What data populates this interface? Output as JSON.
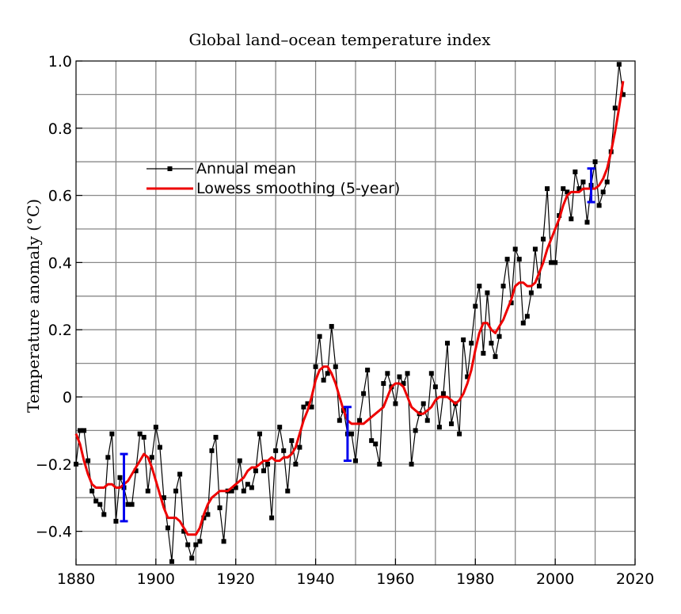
{
  "chart_data": {
    "type": "line",
    "title": "Global land–ocean temperature index",
    "xlabel": "",
    "ylabel": "Temperature anomaly (°C)",
    "xlim": [
      1880,
      2020
    ],
    "ylim": [
      -0.5,
      1.0
    ],
    "x_ticks": [
      1880,
      1900,
      1920,
      1940,
      1960,
      1980,
      2000,
      2020
    ],
    "y_ticks": [
      -0.4,
      -0.2,
      0,
      0.2,
      0.4,
      0.6,
      0.8,
      1.0
    ],
    "y_tick_labels": [
      "−0.4",
      "−0.2",
      "0",
      "0.2",
      "0.4",
      "0.6",
      "0.8",
      "1.0"
    ],
    "grid": true,
    "legend_position": "upper-left",
    "series": [
      {
        "name": "Annual mean",
        "color": "#000000",
        "marker": "square",
        "x": [
          1880,
          1881,
          1882,
          1883,
          1884,
          1885,
          1886,
          1887,
          1888,
          1889,
          1890,
          1891,
          1892,
          1893,
          1894,
          1895,
          1896,
          1897,
          1898,
          1899,
          1900,
          1901,
          1902,
          1903,
          1904,
          1905,
          1906,
          1907,
          1908,
          1909,
          1910,
          1911,
          1912,
          1913,
          1914,
          1915,
          1916,
          1917,
          1918,
          1919,
          1920,
          1921,
          1922,
          1923,
          1924,
          1925,
          1926,
          1927,
          1928,
          1929,
          1930,
          1931,
          1932,
          1933,
          1934,
          1935,
          1936,
          1937,
          1938,
          1939,
          1940,
          1941,
          1942,
          1943,
          1944,
          1945,
          1946,
          1947,
          1948,
          1949,
          1950,
          1951,
          1952,
          1953,
          1954,
          1955,
          1956,
          1957,
          1958,
          1959,
          1960,
          1961,
          1962,
          1963,
          1964,
          1965,
          1966,
          1967,
          1968,
          1969,
          1970,
          1971,
          1972,
          1973,
          1974,
          1975,
          1976,
          1977,
          1978,
          1979,
          1980,
          1981,
          1982,
          1983,
          1984,
          1985,
          1986,
          1987,
          1988,
          1989,
          1990,
          1991,
          1992,
          1993,
          1994,
          1995,
          1996,
          1997,
          1998,
          1999,
          2000,
          2001,
          2002,
          2003,
          2004,
          2005,
          2006,
          2007,
          2008,
          2009,
          2010,
          2011,
          2012,
          2013,
          2014,
          2015,
          2016,
          2017
        ],
        "y": [
          -0.2,
          -0.1,
          -0.1,
          -0.19,
          -0.28,
          -0.31,
          -0.32,
          -0.35,
          -0.18,
          -0.11,
          -0.37,
          -0.24,
          -0.27,
          -0.32,
          -0.32,
          -0.22,
          -0.11,
          -0.12,
          -0.28,
          -0.18,
          -0.09,
          -0.15,
          -0.3,
          -0.39,
          -0.49,
          -0.28,
          -0.23,
          -0.4,
          -0.44,
          -0.48,
          -0.44,
          -0.43,
          -0.36,
          -0.35,
          -0.16,
          -0.12,
          -0.33,
          -0.43,
          -0.28,
          -0.28,
          -0.27,
          -0.19,
          -0.28,
          -0.26,
          -0.27,
          -0.22,
          -0.11,
          -0.22,
          -0.2,
          -0.36,
          -0.16,
          -0.09,
          -0.16,
          -0.28,
          -0.13,
          -0.2,
          -0.15,
          -0.03,
          -0.02,
          -0.03,
          0.09,
          0.18,
          0.05,
          0.07,
          0.21,
          0.09,
          -0.07,
          -0.04,
          -0.11,
          -0.11,
          -0.19,
          -0.07,
          0.01,
          0.08,
          -0.13,
          -0.14,
          -0.2,
          0.04,
          0.07,
          0.03,
          -0.02,
          0.06,
          0.04,
          0.07,
          -0.2,
          -0.1,
          -0.05,
          -0.02,
          -0.07,
          0.07,
          0.03,
          -0.09,
          0.01,
          0.16,
          -0.08,
          -0.02,
          -0.11,
          0.17,
          0.06,
          0.16,
          0.27,
          0.33,
          0.13,
          0.31,
          0.16,
          0.12,
          0.18,
          0.33,
          0.41,
          0.28,
          0.44,
          0.41,
          0.22,
          0.24,
          0.31,
          0.44,
          0.33,
          0.47,
          0.62,
          0.4,
          0.4,
          0.54,
          0.62,
          0.61,
          0.53,
          0.67,
          0.62,
          0.64,
          0.52,
          0.63,
          0.7,
          0.57,
          0.61,
          0.64,
          0.73,
          0.86,
          0.99,
          0.9
        ]
      },
      {
        "name": "Lowess smoothing (5-year)",
        "color": "#ee0000",
        "x": [
          1880,
          1881,
          1882,
          1883,
          1884,
          1885,
          1886,
          1887,
          1888,
          1889,
          1890,
          1891,
          1892,
          1893,
          1894,
          1895,
          1896,
          1897,
          1898,
          1899,
          1900,
          1901,
          1902,
          1903,
          1904,
          1905,
          1906,
          1907,
          1908,
          1909,
          1910,
          1911,
          1912,
          1913,
          1914,
          1915,
          1916,
          1917,
          1918,
          1919,
          1920,
          1921,
          1922,
          1923,
          1924,
          1925,
          1926,
          1927,
          1928,
          1929,
          1930,
          1931,
          1932,
          1933,
          1934,
          1935,
          1936,
          1937,
          1938,
          1939,
          1940,
          1941,
          1942,
          1943,
          1944,
          1945,
          1946,
          1947,
          1948,
          1949,
          1950,
          1951,
          1952,
          1953,
          1954,
          1955,
          1956,
          1957,
          1958,
          1959,
          1960,
          1961,
          1962,
          1963,
          1964,
          1965,
          1966,
          1967,
          1968,
          1969,
          1970,
          1971,
          1972,
          1973,
          1974,
          1975,
          1976,
          1977,
          1978,
          1979,
          1980,
          1981,
          1982,
          1983,
          1984,
          1985,
          1986,
          1987,
          1988,
          1989,
          1990,
          1991,
          1992,
          1993,
          1994,
          1995,
          1996,
          1997,
          1998,
          1999,
          2000,
          2001,
          2002,
          2003,
          2004,
          2005,
          2006,
          2007,
          2008,
          2009,
          2010,
          2011,
          2012,
          2013,
          2014,
          2015,
          2016,
          2017
        ],
        "y": [
          -0.11,
          -0.14,
          -0.19,
          -0.23,
          -0.26,
          -0.27,
          -0.27,
          -0.27,
          -0.26,
          -0.26,
          -0.27,
          -0.27,
          -0.26,
          -0.25,
          -0.23,
          -0.21,
          -0.19,
          -0.17,
          -0.18,
          -0.21,
          -0.25,
          -0.29,
          -0.33,
          -0.36,
          -0.36,
          -0.36,
          -0.37,
          -0.39,
          -0.41,
          -0.41,
          -0.41,
          -0.39,
          -0.35,
          -0.32,
          -0.3,
          -0.29,
          -0.28,
          -0.28,
          -0.28,
          -0.27,
          -0.26,
          -0.25,
          -0.24,
          -0.22,
          -0.21,
          -0.21,
          -0.2,
          -0.19,
          -0.19,
          -0.18,
          -0.19,
          -0.19,
          -0.18,
          -0.18,
          -0.17,
          -0.15,
          -0.11,
          -0.07,
          -0.04,
          0.0,
          0.05,
          0.08,
          0.09,
          0.09,
          0.07,
          0.04,
          0.0,
          -0.04,
          -0.07,
          -0.08,
          -0.08,
          -0.08,
          -0.08,
          -0.07,
          -0.06,
          -0.05,
          -0.04,
          -0.03,
          0.0,
          0.03,
          0.04,
          0.04,
          0.03,
          0.0,
          -0.03,
          -0.04,
          -0.05,
          -0.05,
          -0.04,
          -0.03,
          -0.01,
          0.0,
          0.0,
          0.0,
          -0.01,
          -0.02,
          -0.01,
          0.01,
          0.04,
          0.08,
          0.14,
          0.19,
          0.22,
          0.22,
          0.2,
          0.19,
          0.21,
          0.23,
          0.26,
          0.29,
          0.33,
          0.34,
          0.34,
          0.33,
          0.33,
          0.34,
          0.37,
          0.4,
          0.44,
          0.47,
          0.5,
          0.53,
          0.57,
          0.6,
          0.61,
          0.61,
          0.61,
          0.62,
          0.62,
          0.62,
          0.62,
          0.63,
          0.65,
          0.68,
          0.73,
          0.79,
          0.86,
          0.94
        ]
      }
    ],
    "error_bars": [
      {
        "x": 1892,
        "low": -0.37,
        "high": -0.17,
        "color": "#0000ee"
      },
      {
        "x": 1948,
        "low": -0.19,
        "high": -0.03,
        "color": "#0000ee"
      },
      {
        "x": 2009,
        "low": 0.58,
        "high": 0.68,
        "color": "#0000ee"
      }
    ]
  }
}
